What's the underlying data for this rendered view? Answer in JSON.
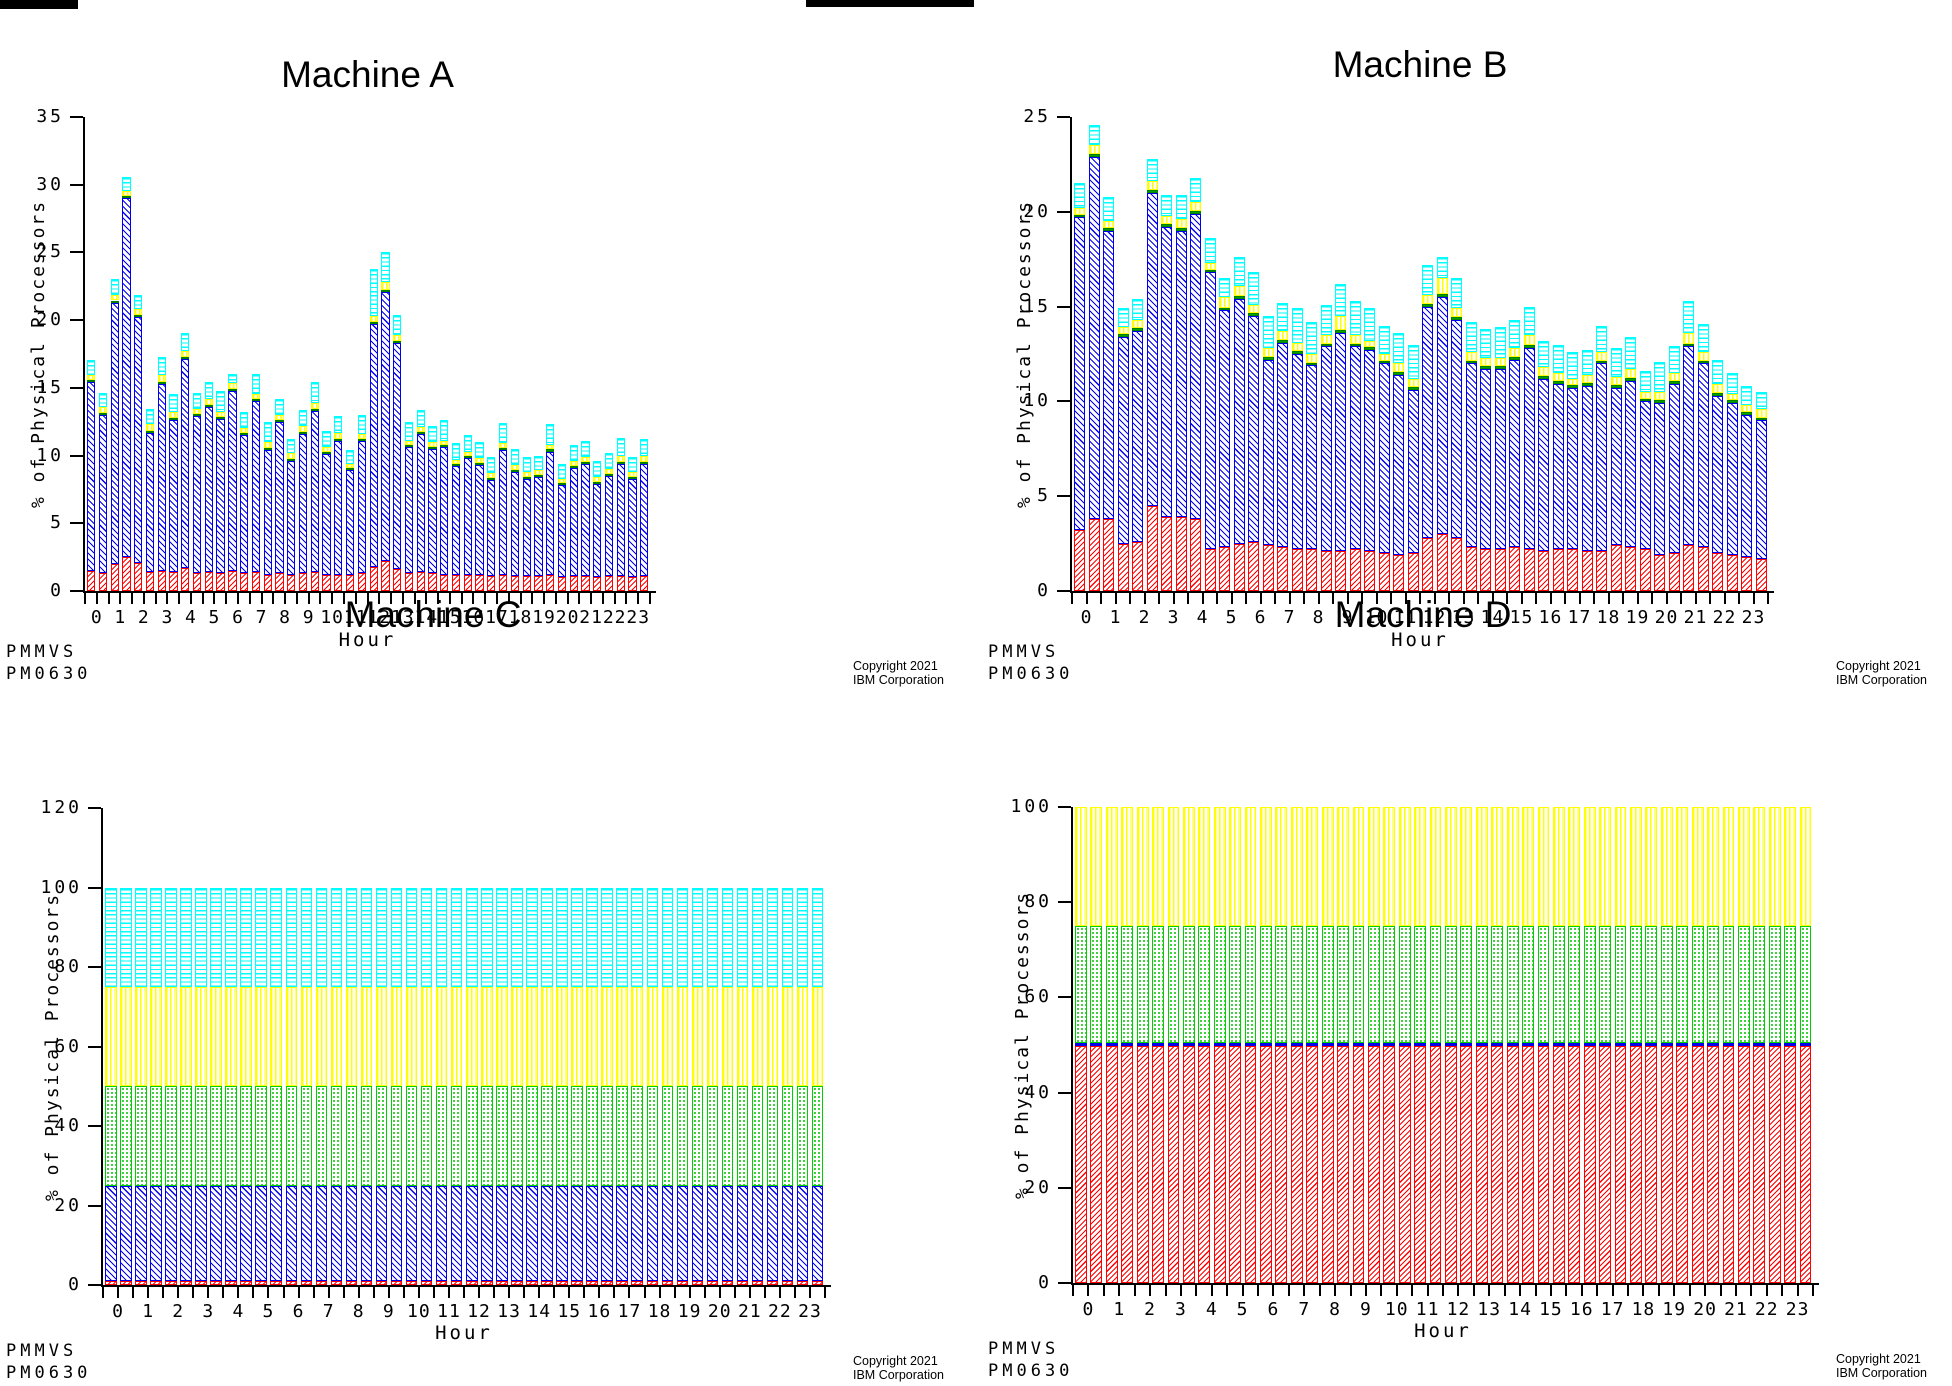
{
  "page": {
    "copyright_line1": "Copyright 2021",
    "copyright_line2": "IBM Corporation",
    "program": "PMMVS",
    "report_id": "PM0630"
  },
  "colors": {
    "red": "#ff0000",
    "blue": "#0000ee",
    "green_sliver": "#00a000",
    "green_dots": "#00c000",
    "yellow": "#ffff00",
    "cyan": "#00ffff",
    "axis": "#000000"
  },
  "chart_data": [
    {
      "id": "machine-a",
      "type": "bar",
      "subtype": "stacked-bar",
      "title": "Machine A",
      "ylabel": "% of Physical Processors",
      "xlabel": "Hour",
      "ymax": 35,
      "y_ticks": [
        0,
        5,
        10,
        15,
        20,
        25,
        30,
        35
      ],
      "x_tick_labels": [
        "0",
        "1",
        "2",
        "3",
        "4",
        "5",
        "6",
        "7",
        "8",
        "9",
        "10",
        "11",
        "12",
        "13",
        "14",
        "15",
        "16",
        "17",
        "18",
        "19",
        "20",
        "21",
        "22",
        "23"
      ],
      "x_interval": "30min",
      "grid": false,
      "legend": "none",
      "segments": [
        "red-hatch",
        "blue-hatch",
        "green-solid",
        "yellow-vlines",
        "cyan-hlines"
      ],
      "bars": [
        [
          1.5,
          13.9,
          0.15,
          0.4,
          1.1
        ],
        [
          1.3,
          11.7,
          0.15,
          0.4,
          1.1
        ],
        [
          2.0,
          19.3,
          0.15,
          0.4,
          1.2
        ],
        [
          2.5,
          26.5,
          0.15,
          0.4,
          1.0
        ],
        [
          2.1,
          18.1,
          0.15,
          0.5,
          1.0
        ],
        [
          1.4,
          10.3,
          0.15,
          0.5,
          1.1
        ],
        [
          1.5,
          13.8,
          0.15,
          0.5,
          1.3
        ],
        [
          1.4,
          11.2,
          0.15,
          0.5,
          1.3
        ],
        [
          1.7,
          15.4,
          0.15,
          0.5,
          1.3
        ],
        [
          1.3,
          11.6,
          0.15,
          0.4,
          1.2
        ],
        [
          1.4,
          12.2,
          0.15,
          0.4,
          1.3
        ],
        [
          1.3,
          11.4,
          0.15,
          0.4,
          1.5
        ],
        [
          1.5,
          13.3,
          0.15,
          0.4,
          0.7
        ],
        [
          1.3,
          10.2,
          0.15,
          0.4,
          1.2
        ],
        [
          1.4,
          12.6,
          0.15,
          0.4,
          1.5
        ],
        [
          1.2,
          9.2,
          0.15,
          0.45,
          1.5
        ],
        [
          1.3,
          11.2,
          0.15,
          0.35,
          1.2
        ],
        [
          1.2,
          8.4,
          0.15,
          0.45,
          1.0
        ],
        [
          1.3,
          10.3,
          0.15,
          0.45,
          1.2
        ],
        [
          1.4,
          11.9,
          0.15,
          0.45,
          1.5
        ],
        [
          1.2,
          8.9,
          0.15,
          0.35,
          1.2
        ],
        [
          1.2,
          9.9,
          0.15,
          0.45,
          1.2
        ],
        [
          1.2,
          7.7,
          0.15,
          0.35,
          1.0
        ],
        [
          1.3,
          9.8,
          0.15,
          0.35,
          1.4
        ],
        [
          1.8,
          17.9,
          0.15,
          0.45,
          3.5
        ],
        [
          2.2,
          19.9,
          0.15,
          0.55,
          2.2
        ],
        [
          1.6,
          16.7,
          0.15,
          0.45,
          1.5
        ],
        [
          1.3,
          9.3,
          0.15,
          0.35,
          1.4
        ],
        [
          1.4,
          10.2,
          0.15,
          0.35,
          1.3
        ],
        [
          1.3,
          9.2,
          0.15,
          0.35,
          1.2
        ],
        [
          1.2,
          9.4,
          0.15,
          0.35,
          1.5
        ],
        [
          1.2,
          8.0,
          0.15,
          0.35,
          1.2
        ],
        [
          1.2,
          8.6,
          0.15,
          0.35,
          1.2
        ],
        [
          1.2,
          8.1,
          0.15,
          0.35,
          1.2
        ],
        [
          1.1,
          7.1,
          0.15,
          0.35,
          1.2
        ],
        [
          1.2,
          9.2,
          0.15,
          0.35,
          1.5
        ],
        [
          1.1,
          7.7,
          0.15,
          0.35,
          1.2
        ],
        [
          1.1,
          7.2,
          0.15,
          0.35,
          1.1
        ],
        [
          1.1,
          7.3,
          0.15,
          0.35,
          1.1
        ],
        [
          1.2,
          9.1,
          0.15,
          0.35,
          1.5
        ],
        [
          1.0,
          6.8,
          0.15,
          0.35,
          1.1
        ],
        [
          1.1,
          8.0,
          0.15,
          0.35,
          1.2
        ],
        [
          1.1,
          8.3,
          0.15,
          0.35,
          1.2
        ],
        [
          1.0,
          6.9,
          0.15,
          0.35,
          1.2
        ],
        [
          1.1,
          7.4,
          0.15,
          0.35,
          1.2
        ],
        [
          1.1,
          8.3,
          0.15,
          0.45,
          1.3
        ],
        [
          1.0,
          7.3,
          0.15,
          0.35,
          1.1
        ],
        [
          1.1,
          8.3,
          0.15,
          0.45,
          1.2
        ]
      ],
      "footer": {
        "program": "PMMVS",
        "report": "PM0630"
      },
      "copyright_lines": [
        "Copyright 2021",
        "IBM Corporation"
      ]
    },
    {
      "id": "machine-b",
      "type": "bar",
      "subtype": "stacked-bar",
      "title": "Machine B",
      "ylabel": "% of Physical Processors",
      "xlabel": "Hour",
      "ymax": 25,
      "y_ticks": [
        0,
        5,
        10,
        15,
        20,
        25
      ],
      "x_tick_labels": [
        "0",
        "1",
        "2",
        "3",
        "4",
        "5",
        "6",
        "7",
        "8",
        "9",
        "10",
        "11",
        "12",
        "13",
        "14",
        "15",
        "16",
        "17",
        "18",
        "19",
        "20",
        "21",
        "22",
        "23"
      ],
      "x_interval": "30min",
      "grid": false,
      "legend": "none",
      "segments": [
        "red-hatch",
        "blue-hatch",
        "green-solid",
        "yellow-vlines",
        "cyan-hlines"
      ],
      "bars": [
        [
          3.2,
          16.5,
          0.15,
          0.35,
          1.3
        ],
        [
          3.8,
          19.1,
          0.15,
          0.45,
          1.1
        ],
        [
          3.8,
          15.2,
          0.15,
          0.35,
          1.3
        ],
        [
          2.5,
          10.9,
          0.15,
          0.35,
          1.0
        ],
        [
          2.6,
          11.1,
          0.15,
          0.45,
          1.1
        ],
        [
          4.5,
          16.5,
          0.15,
          0.45,
          1.2
        ],
        [
          3.9,
          15.3,
          0.15,
          0.45,
          1.1
        ],
        [
          3.9,
          15.1,
          0.15,
          0.45,
          1.3
        ],
        [
          3.8,
          16.1,
          0.15,
          0.45,
          1.3
        ],
        [
          2.2,
          14.6,
          0.15,
          0.35,
          1.3
        ],
        [
          2.3,
          12.5,
          0.15,
          0.55,
          1.0
        ],
        [
          2.5,
          12.9,
          0.15,
          0.55,
          1.5
        ],
        [
          2.6,
          11.9,
          0.15,
          0.45,
          1.7
        ],
        [
          2.4,
          9.8,
          0.15,
          0.45,
          1.7
        ],
        [
          2.3,
          10.8,
          0.15,
          0.45,
          1.5
        ],
        [
          2.2,
          10.3,
          0.15,
          0.45,
          1.8
        ],
        [
          2.2,
          9.7,
          0.15,
          0.45,
          1.7
        ],
        [
          2.1,
          10.8,
          0.15,
          0.45,
          1.6
        ],
        [
          2.1,
          11.5,
          0.15,
          0.75,
          1.7
        ],
        [
          2.2,
          10.7,
          0.15,
          0.45,
          1.8
        ],
        [
          2.1,
          10.6,
          0.15,
          0.35,
          1.7
        ],
        [
          2.0,
          10.0,
          0.15,
          0.35,
          1.5
        ],
        [
          1.9,
          9.5,
          0.15,
          0.45,
          1.6
        ],
        [
          2.0,
          8.6,
          0.15,
          0.45,
          1.8
        ],
        [
          2.8,
          12.2,
          0.15,
          0.45,
          1.6
        ],
        [
          3.0,
          12.5,
          0.15,
          0.85,
          1.1
        ],
        [
          2.8,
          11.5,
          0.15,
          0.45,
          1.6
        ],
        [
          2.3,
          9.7,
          0.15,
          0.45,
          1.6
        ],
        [
          2.2,
          9.5,
          0.15,
          0.45,
          1.5
        ],
        [
          2.2,
          9.5,
          0.15,
          0.45,
          1.6
        ],
        [
          2.3,
          9.9,
          0.15,
          0.45,
          1.5
        ],
        [
          2.2,
          10.6,
          0.15,
          0.55,
          1.5
        ],
        [
          2.1,
          9.1,
          0.15,
          0.45,
          1.4
        ],
        [
          2.2,
          8.7,
          0.15,
          0.45,
          1.5
        ],
        [
          2.2,
          8.5,
          0.15,
          0.35,
          1.4
        ],
        [
          2.1,
          8.7,
          0.15,
          0.45,
          1.3
        ],
        [
          2.1,
          9.9,
          0.15,
          0.45,
          1.4
        ],
        [
          2.4,
          8.3,
          0.15,
          0.45,
          1.5
        ],
        [
          2.3,
          8.8,
          0.15,
          0.45,
          1.7
        ],
        [
          2.2,
          7.8,
          0.15,
          0.35,
          1.1
        ],
        [
          1.9,
          8.0,
          0.15,
          0.45,
          1.6
        ],
        [
          2.0,
          8.9,
          0.15,
          0.45,
          1.4
        ],
        [
          2.4,
          10.5,
          0.15,
          0.55,
          1.7
        ],
        [
          2.3,
          9.7,
          0.15,
          0.45,
          1.5
        ],
        [
          2.0,
          8.3,
          0.15,
          0.45,
          1.3
        ],
        [
          1.9,
          8.0,
          0.15,
          0.35,
          1.1
        ],
        [
          1.8,
          7.5,
          0.15,
          0.35,
          1.0
        ],
        [
          1.7,
          7.3,
          0.15,
          0.45,
          0.9
        ]
      ],
      "footer": {
        "program": "PMMVS",
        "report": "PM0630"
      },
      "copyright_lines": [
        "Copyright 2021",
        "IBM Corporation"
      ]
    },
    {
      "id": "machine-c",
      "type": "bar",
      "subtype": "stacked-bar",
      "title": "Machine C",
      "ylabel": "% of Physical Processors",
      "xlabel": "Hour",
      "ymax": 120,
      "y_ticks": [
        0,
        20,
        40,
        60,
        80,
        100,
        120
      ],
      "x_tick_labels": [
        "0",
        "1",
        "2",
        "3",
        "4",
        "5",
        "6",
        "7",
        "8",
        "9",
        "10",
        "11",
        "12",
        "13",
        "14",
        "15",
        "16",
        "17",
        "18",
        "19",
        "20",
        "21",
        "22",
        "23"
      ],
      "x_interval": "30min",
      "grid": false,
      "legend": "none",
      "segments": [
        "red-hatch",
        "blue-hatch",
        "green-dots",
        "yellow-vlines",
        "cyan-hlines"
      ],
      "bars": {
        "repeat": 48,
        "heights": [
          1.0,
          24.0,
          25.0,
          25.0,
          25.0
        ]
      },
      "footer": {
        "program": "PMMVS",
        "report": "PM0630"
      },
      "copyright_lines": [
        "Copyright 2021",
        "IBM Corporation"
      ]
    },
    {
      "id": "machine-d",
      "type": "bar",
      "subtype": "stacked-bar",
      "title": "Machine D",
      "ylabel": "% of Physical Processors",
      "xlabel": "Hour",
      "ymax": 100,
      "y_ticks": [
        0,
        20,
        40,
        60,
        80,
        100
      ],
      "x_tick_labels": [
        "0",
        "1",
        "2",
        "3",
        "4",
        "5",
        "6",
        "7",
        "8",
        "9",
        "10",
        "11",
        "12",
        "13",
        "14",
        "15",
        "16",
        "17",
        "18",
        "19",
        "20",
        "21",
        "22",
        "23"
      ],
      "x_interval": "30min",
      "grid": false,
      "legend": "none",
      "segments": [
        "red-hatch",
        "blue-solid",
        "green-dots",
        "yellow-vlines"
      ],
      "bars": {
        "repeat": 48,
        "heights": [
          49.8,
          0.7,
          24.5,
          25.0
        ]
      },
      "footer": {
        "program": "PMMVS",
        "report": "PM0630"
      },
      "copyright_lines": [
        "Copyright 2021",
        "IBM Corporation"
      ]
    }
  ]
}
